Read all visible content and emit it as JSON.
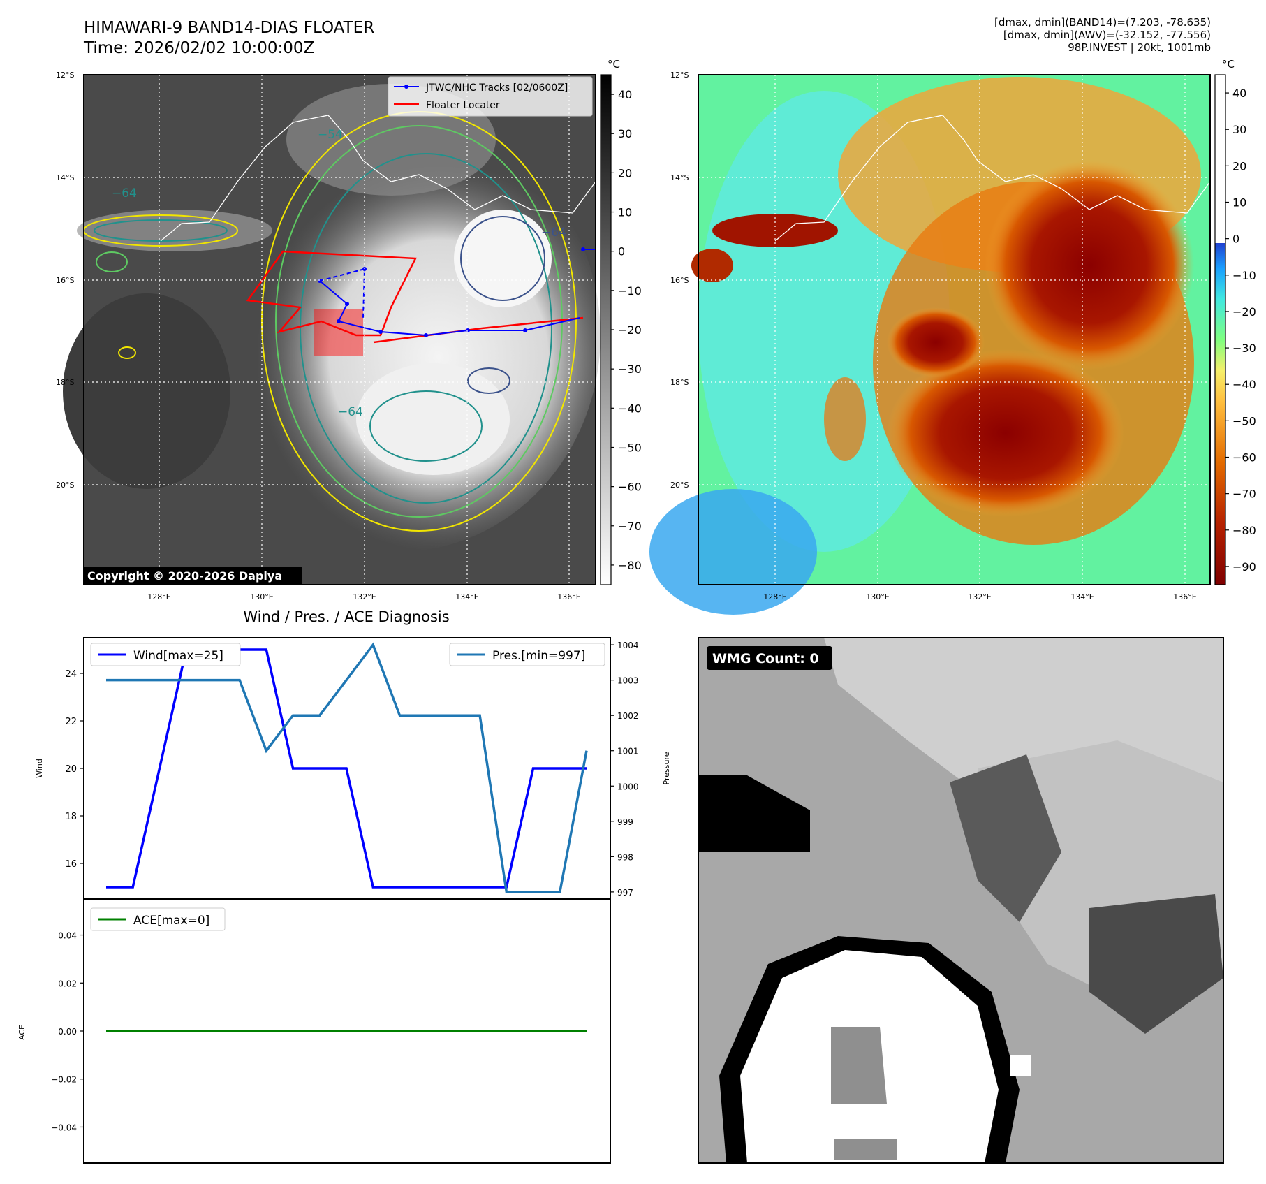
{
  "header": {
    "title_line1": "HIMAWARI-9 BAND14-DIAS FLOATER",
    "title_line2": "Time: 2026/02/02 10:00:00Z",
    "stats_line1": "[dmax, dmin](BAND14)=(7.203, -78.635)",
    "stats_line2": "[dmax, dmin](AWV)=(-32.152, -77.556)",
    "stats_line3": "98P.INVEST | 20kt, 1001mb"
  },
  "maps": {
    "lat_labels": [
      "12°S",
      "14°S",
      "16°S",
      "18°S",
      "20°S"
    ],
    "lon_labels": [
      "128°E",
      "130°E",
      "132°E",
      "134°E",
      "136°E"
    ],
    "unit": "°C",
    "band14_ticks": [
      "40",
      "30",
      "20",
      "10",
      "0",
      "−10",
      "−20",
      "−30",
      "−40",
      "−50",
      "−60",
      "−70",
      "−80"
    ],
    "awv_ticks": [
      "40",
      "30",
      "20",
      "10",
      "0",
      "−10",
      "−20",
      "−30",
      "−40",
      "−50",
      "−60",
      "−70",
      "−80",
      "−90"
    ],
    "legend_tracks": "JTWC/NHC Tracks [02/0600Z]",
    "legend_floater": "Floater Locater",
    "copyright": "Copyright © 2020-2026 Dapiya",
    "contour_labels": [
      "−54",
      "−64",
      "−64",
      "−64"
    ],
    "colors": {
      "track": "#0000ff",
      "floater": "#ff0000",
      "contour_yellow": "#f2e600",
      "contour_green": "#5ec962",
      "contour_teal": "#21918c",
      "contour_navy": "#3b528b"
    }
  },
  "diagnosis": {
    "title": "Wind / Pres. / ACE Diagnosis",
    "wind_legend": "Wind[max=25]",
    "pres_legend": "Pres.[min=997]",
    "ace_legend": "ACE[max=0]",
    "wind_axis_label": "Wind",
    "pres_axis_label": "Pressure",
    "ace_axis_label": "ACE",
    "colors": {
      "wind": "#0000ff",
      "pres": "#1f77b4",
      "ace": "#008000"
    }
  },
  "wmg": {
    "label": "WMG Count: 0"
  },
  "chart_data": [
    {
      "type": "line",
      "x": [
        1,
        2,
        3,
        4,
        5,
        6,
        7,
        8,
        9,
        10,
        11,
        12,
        13,
        14,
        15,
        16,
        17,
        18,
        19
      ],
      "series": [
        {
          "name": "Wind[max=25]",
          "axis": "left",
          "values": [
            15,
            15,
            20,
            25,
            25,
            25,
            25,
            20,
            20,
            20,
            15,
            15,
            15,
            15,
            15,
            15,
            20,
            20,
            20
          ]
        },
        {
          "name": "Pres.[min=997]",
          "axis": "right",
          "values": [
            1003,
            1003,
            1003,
            1003,
            1003,
            1003,
            1001,
            1002,
            1002,
            1003,
            1004,
            1002,
            1002,
            1002,
            1002,
            997,
            997,
            997,
            1001
          ]
        }
      ],
      "title": "Wind / Pres. / ACE Diagnosis",
      "ylabel": "Wind",
      "y2label": "Pressure",
      "ylim": [
        14.5,
        25.5
      ],
      "y2lim": [
        996.8,
        1004.2
      ],
      "yticks": [
        16,
        18,
        20,
        22,
        24
      ],
      "y2ticks": [
        997,
        998,
        999,
        1000,
        1001,
        1002,
        1003,
        1004
      ],
      "legend": [
        "upper left",
        "upper right"
      ]
    },
    {
      "type": "line",
      "x": [
        1,
        2,
        3,
        4,
        5,
        6,
        7,
        8,
        9,
        10,
        11,
        12,
        13,
        14,
        15,
        16,
        17,
        18,
        19
      ],
      "series": [
        {
          "name": "ACE[max=0]",
          "values": [
            0,
            0,
            0,
            0,
            0,
            0,
            0,
            0,
            0,
            0,
            0,
            0,
            0,
            0,
            0,
            0,
            0,
            0,
            0
          ]
        }
      ],
      "ylabel": "ACE",
      "ylim": [
        -0.055,
        0.055
      ],
      "yticks": [
        0.04,
        0.02,
        0.0,
        -0.02,
        -0.04
      ],
      "ytick_labels": [
        "0.04",
        "0.02",
        "0.00",
        "−0.02",
        "−0.04"
      ],
      "legend": "upper left"
    }
  ]
}
